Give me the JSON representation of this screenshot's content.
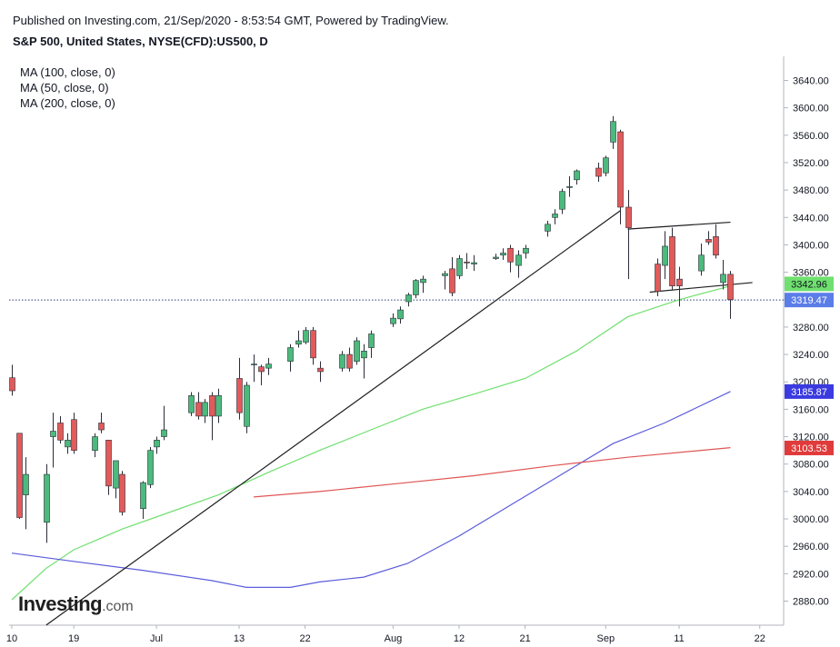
{
  "header": {
    "published": "Published on Investing.com, 21/Sep/2020 - 8:53:54 GMT, Powered by TradingView.",
    "instrument": "S&P 500, United States, NYSE(CFD):US500, D"
  },
  "legend": [
    "MA (100, close, 0)",
    "MA (50, close, 0)",
    "MA (200, close, 0)"
  ],
  "logo": {
    "name": "Investing",
    "suffix": ".com"
  },
  "chart_data": {
    "type": "candlestick",
    "title": "S&P 500, United States, NYSE(CFD):US500, D",
    "ylim": [
      2850,
      3680
    ],
    "y_ticks": [
      2880,
      2920,
      2960,
      3000,
      3040,
      3080,
      3120,
      3160,
      3200,
      3240,
      3280,
      3320,
      3360,
      3400,
      3440,
      3480,
      3520,
      3560,
      3600,
      3640
    ],
    "y_tick_labels": [
      "2880.00",
      "2920.00",
      "2960.00",
      "3000.00",
      "3040.00",
      "3080.00",
      "3120.00",
      "3160.00",
      "3200.00",
      "3240.00",
      "3280.00",
      "3320.00",
      "3360.00",
      "3400.00",
      "3440.00",
      "3480.00",
      "3520.00",
      "3560.00",
      "3600.00",
      "3640.00"
    ],
    "x_labels": [
      {
        "date": "2020-06-10",
        "label": "10"
      },
      {
        "date": "2020-06-19",
        "label": "19"
      },
      {
        "date": "2020-07-01",
        "label": "Jul"
      },
      {
        "date": "2020-07-13",
        "label": "13"
      },
      {
        "date": "2020-07-22",
        "label": "22"
      },
      {
        "date": "2020-08-03",
        "label": "Aug"
      },
      {
        "date": "2020-08-12",
        "label": "12"
      },
      {
        "date": "2020-08-21",
        "label": "21"
      },
      {
        "date": "2020-09-01",
        "label": "Sep"
      },
      {
        "date": "2020-09-11",
        "label": "11"
      },
      {
        "date": "2020-09-22",
        "label": "22"
      }
    ],
    "candles": [
      {
        "date": "2020-06-10",
        "open": 3206,
        "high": 3225,
        "low": 3180,
        "close": 3187
      },
      {
        "date": "2020-06-11",
        "open": 3125,
        "high": 3125,
        "low": 3000,
        "close": 3002
      },
      {
        "date": "2020-06-12",
        "open": 3035,
        "high": 3090,
        "low": 2985,
        "close": 3065
      },
      {
        "date": "2020-06-15",
        "open": 2995,
        "high": 3080,
        "low": 2965,
        "close": 3065
      },
      {
        "date": "2020-06-16",
        "open": 3120,
        "high": 3155,
        "low": 3075,
        "close": 3128
      },
      {
        "date": "2020-06-17",
        "open": 3140,
        "high": 3150,
        "low": 3110,
        "close": 3115
      },
      {
        "date": "2020-06-18",
        "open": 3105,
        "high": 3125,
        "low": 3095,
        "close": 3115
      },
      {
        "date": "2020-06-19",
        "open": 3145,
        "high": 3155,
        "low": 3095,
        "close": 3100
      },
      {
        "date": "2020-06-22",
        "open": 3100,
        "high": 3125,
        "low": 3090,
        "close": 3120
      },
      {
        "date": "2020-06-23",
        "open": 3140,
        "high": 3155,
        "low": 3125,
        "close": 3130
      },
      {
        "date": "2020-06-24",
        "open": 3115,
        "high": 3115,
        "low": 3035,
        "close": 3048
      },
      {
        "date": "2020-06-25",
        "open": 3045,
        "high": 3085,
        "low": 3030,
        "close": 3085
      },
      {
        "date": "2020-06-26",
        "open": 3065,
        "high": 3070,
        "low": 3005,
        "close": 3010
      },
      {
        "date": "2020-06-29",
        "open": 3015,
        "high": 3055,
        "low": 3000,
        "close": 3053
      },
      {
        "date": "2020-06-30",
        "open": 3050,
        "high": 3105,
        "low": 3045,
        "close": 3100
      },
      {
        "date": "2020-07-01",
        "open": 3105,
        "high": 3120,
        "low": 3095,
        "close": 3115
      },
      {
        "date": "2020-07-02",
        "open": 3120,
        "high": 3165,
        "low": 3115,
        "close": 3130
      },
      {
        "date": "2020-07-06",
        "open": 3155,
        "high": 3185,
        "low": 3150,
        "close": 3180
      },
      {
        "date": "2020-07-07",
        "open": 3170,
        "high": 3185,
        "low": 3145,
        "close": 3150
      },
      {
        "date": "2020-07-08",
        "open": 3150,
        "high": 3175,
        "low": 3140,
        "close": 3170
      },
      {
        "date": "2020-07-09",
        "open": 3180,
        "high": 3185,
        "low": 3115,
        "close": 3150
      },
      {
        "date": "2020-07-10",
        "open": 3150,
        "high": 3190,
        "low": 3140,
        "close": 3180
      },
      {
        "date": "2020-07-13",
        "open": 3205,
        "high": 3235,
        "low": 3145,
        "close": 3155
      },
      {
        "date": "2020-07-14",
        "open": 3135,
        "high": 3200,
        "low": 3125,
        "close": 3195
      },
      {
        "date": "2020-07-15",
        "open": 3225,
        "high": 3240,
        "low": 3200,
        "close": 3226
      },
      {
        "date": "2020-07-16",
        "open": 3222,
        "high": 3225,
        "low": 3195,
        "close": 3215
      },
      {
        "date": "2020-07-17",
        "open": 3220,
        "high": 3235,
        "low": 3210,
        "close": 3226
      },
      {
        "date": "2020-07-20",
        "open": 3230,
        "high": 3255,
        "low": 3215,
        "close": 3250
      },
      {
        "date": "2020-07-21",
        "open": 3255,
        "high": 3275,
        "low": 3250,
        "close": 3260
      },
      {
        "date": "2020-07-22",
        "open": 3258,
        "high": 3280,
        "low": 3255,
        "close": 3275
      },
      {
        "date": "2020-07-23",
        "open": 3275,
        "high": 3280,
        "low": 3225,
        "close": 3235
      },
      {
        "date": "2020-07-24",
        "open": 3220,
        "high": 3230,
        "low": 3200,
        "close": 3215
      },
      {
        "date": "2020-07-27",
        "open": 3220,
        "high": 3245,
        "low": 3215,
        "close": 3240
      },
      {
        "date": "2020-07-28",
        "open": 3240,
        "high": 3250,
        "low": 3215,
        "close": 3220
      },
      {
        "date": "2020-07-29",
        "open": 3230,
        "high": 3265,
        "low": 3225,
        "close": 3260
      },
      {
        "date": "2020-07-30",
        "open": 3235,
        "high": 3255,
        "low": 3205,
        "close": 3245
      },
      {
        "date": "2020-07-31",
        "open": 3250,
        "high": 3275,
        "low": 3235,
        "close": 3270
      },
      {
        "date": "2020-08-03",
        "open": 3285,
        "high": 3300,
        "low": 3280,
        "close": 3293
      },
      {
        "date": "2020-08-04",
        "open": 3292,
        "high": 3310,
        "low": 3285,
        "close": 3305
      },
      {
        "date": "2020-08-05",
        "open": 3317,
        "high": 3330,
        "low": 3310,
        "close": 3327
      },
      {
        "date": "2020-08-06",
        "open": 3327,
        "high": 3350,
        "low": 3322,
        "close": 3348
      },
      {
        "date": "2020-08-07",
        "open": 3345,
        "high": 3355,
        "low": 3330,
        "close": 3350
      },
      {
        "date": "2020-08-10",
        "open": 3355,
        "high": 3362,
        "low": 3335,
        "close": 3358
      },
      {
        "date": "2020-08-11",
        "open": 3365,
        "high": 3382,
        "low": 3325,
        "close": 3330
      },
      {
        "date": "2020-08-12",
        "open": 3355,
        "high": 3385,
        "low": 3350,
        "close": 3380
      },
      {
        "date": "2020-08-13",
        "open": 3375,
        "high": 3388,
        "low": 3365,
        "close": 3374
      },
      {
        "date": "2020-08-14",
        "open": 3372,
        "high": 3385,
        "low": 3362,
        "close": 3374
      },
      {
        "date": "2020-08-17",
        "open": 3380,
        "high": 3387,
        "low": 3378,
        "close": 3382
      },
      {
        "date": "2020-08-18",
        "open": 3385,
        "high": 3395,
        "low": 3378,
        "close": 3388
      },
      {
        "date": "2020-08-19",
        "open": 3395,
        "high": 3400,
        "low": 3360,
        "close": 3375
      },
      {
        "date": "2020-08-20",
        "open": 3370,
        "high": 3392,
        "low": 3352,
        "close": 3385
      },
      {
        "date": "2020-08-21",
        "open": 3388,
        "high": 3400,
        "low": 3380,
        "close": 3395
      },
      {
        "date": "2020-08-24",
        "open": 3420,
        "high": 3435,
        "low": 3412,
        "close": 3430
      },
      {
        "date": "2020-08-25",
        "open": 3440,
        "high": 3452,
        "low": 3430,
        "close": 3445
      },
      {
        "date": "2020-08-26",
        "open": 3452,
        "high": 3482,
        "low": 3445,
        "close": 3478
      },
      {
        "date": "2020-08-27",
        "open": 3484,
        "high": 3500,
        "low": 3470,
        "close": 3485
      },
      {
        "date": "2020-08-28",
        "open": 3495,
        "high": 3510,
        "low": 3488,
        "close": 3508
      },
      {
        "date": "2020-08-31",
        "open": 3512,
        "high": 3520,
        "low": 3492,
        "close": 3500
      },
      {
        "date": "2020-09-01",
        "open": 3505,
        "high": 3530,
        "low": 3500,
        "close": 3527
      },
      {
        "date": "2020-09-02",
        "open": 3550,
        "high": 3588,
        "low": 3540,
        "close": 3580
      },
      {
        "date": "2020-09-03",
        "open": 3565,
        "high": 3568,
        "low": 3430,
        "close": 3455
      },
      {
        "date": "2020-09-04",
        "open": 3455,
        "high": 3480,
        "low": 3350,
        "close": 3425
      },
      {
        "date": "2020-09-08",
        "open": 3372,
        "high": 3380,
        "low": 3325,
        "close": 3332
      },
      {
        "date": "2020-09-09",
        "open": 3370,
        "high": 3420,
        "low": 3350,
        "close": 3398
      },
      {
        "date": "2020-09-10",
        "open": 3412,
        "high": 3425,
        "low": 3335,
        "close": 3340
      },
      {
        "date": "2020-09-11",
        "open": 3350,
        "high": 3368,
        "low": 3310,
        "close": 3340
      },
      {
        "date": "2020-09-14",
        "open": 3362,
        "high": 3402,
        "low": 3355,
        "close": 3385
      },
      {
        "date": "2020-09-15",
        "open": 3408,
        "high": 3420,
        "low": 3400,
        "close": 3404
      },
      {
        "date": "2020-09-16",
        "open": 3412,
        "high": 3430,
        "low": 3380,
        "close": 3385
      },
      {
        "date": "2020-09-17",
        "open": 3345,
        "high": 3378,
        "low": 3335,
        "close": 3357
      },
      {
        "date": "2020-09-18",
        "open": 3357,
        "high": 3362,
        "low": 3292,
        "close": 3320
      }
    ],
    "moving_averages": [
      {
        "name": "MA (50, close, 0)",
        "color": "#6fe06f",
        "points": [
          [
            "2020-06-10",
            2882
          ],
          [
            "2020-06-15",
            2928
          ],
          [
            "2020-06-19",
            2955
          ],
          [
            "2020-06-26",
            2985
          ],
          [
            "2020-07-03",
            3010
          ],
          [
            "2020-07-10",
            3035
          ],
          [
            "2020-07-17",
            3068
          ],
          [
            "2020-07-24",
            3100
          ],
          [
            "2020-07-31",
            3130
          ],
          [
            "2020-08-07",
            3160
          ],
          [
            "2020-08-14",
            3182
          ],
          [
            "2020-08-21",
            3205
          ],
          [
            "2020-08-28",
            3245
          ],
          [
            "2020-09-04",
            3295
          ],
          [
            "2020-09-11",
            3320
          ],
          [
            "2020-09-18",
            3340
          ]
        ]
      },
      {
        "name": "MA (100, close, 0)",
        "color": "#5b5bdc",
        "points": [
          [
            "2020-06-10",
            2950
          ],
          [
            "2020-06-19",
            2938
          ],
          [
            "2020-06-29",
            2925
          ],
          [
            "2020-07-09",
            2910
          ],
          [
            "2020-07-14",
            2900
          ],
          [
            "2020-07-20",
            2900
          ],
          [
            "2020-07-24",
            2908
          ],
          [
            "2020-07-30",
            2915
          ],
          [
            "2020-08-05",
            2935
          ],
          [
            "2020-08-12",
            2975
          ],
          [
            "2020-08-19",
            3020
          ],
          [
            "2020-08-26",
            3065
          ],
          [
            "2020-09-02",
            3110
          ],
          [
            "2020-09-09",
            3140
          ],
          [
            "2020-09-18",
            3186
          ]
        ]
      },
      {
        "name": "MA (200, close, 0)",
        "color": "#e05555",
        "points": [
          [
            "2020-07-15",
            3032
          ],
          [
            "2020-07-24",
            3040
          ],
          [
            "2020-08-04",
            3052
          ],
          [
            "2020-08-14",
            3063
          ],
          [
            "2020-08-25",
            3078
          ],
          [
            "2020-09-04",
            3090
          ],
          [
            "2020-09-18",
            3104
          ]
        ]
      }
    ],
    "trendlines": [
      {
        "from": [
          "2020-06-15",
          2845
        ],
        "to": [
          "2020-09-03",
          3450
        ]
      },
      {
        "from": [
          "2020-09-04",
          3423
        ],
        "to": [
          "2020-09-18",
          3433
        ]
      },
      {
        "from": [
          "2020-09-07",
          3331
        ],
        "to": [
          "2020-09-21",
          3345
        ]
      }
    ],
    "current_price_line": 3319.47,
    "price_badges": [
      {
        "value": 3342.96,
        "label": "3342.96",
        "color": "#6fe06f",
        "text_color": "#131722"
      },
      {
        "value": 3319.47,
        "label": "3319.47",
        "color": "#5b7de8",
        "text_color": "#ffffff"
      },
      {
        "value": 3185.87,
        "label": "3185.87",
        "color": "#3a3ae0",
        "text_color": "#ffffff"
      },
      {
        "value": 3103.53,
        "label": "3103.53",
        "color": "#e03a3a",
        "text_color": "#ffffff"
      }
    ],
    "colors": {
      "up": "#4cba7c",
      "down": "#e25a5a",
      "wick": "#2a2e39",
      "axis": "#b2b5be"
    }
  }
}
